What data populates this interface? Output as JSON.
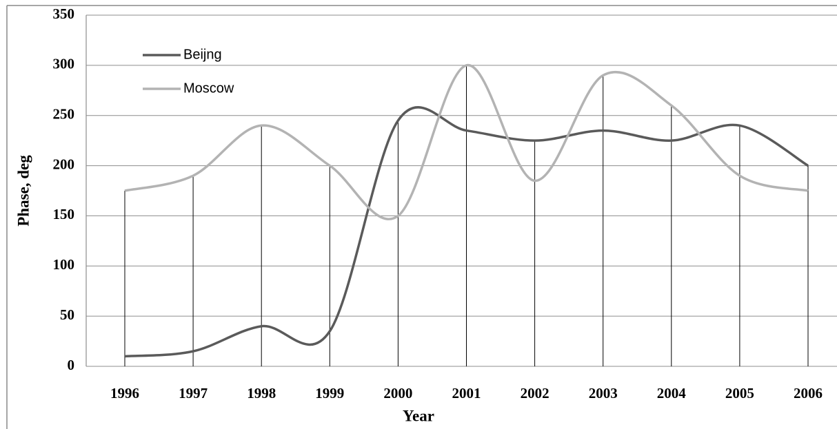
{
  "chart_data": {
    "type": "line",
    "y_label": "Phase, deg",
    "x_label": "Year",
    "categories": [
      "1996",
      "1997",
      "1998",
      "1999",
      "2000",
      "2001",
      "2002",
      "2003",
      "2004",
      "2005",
      "2006"
    ],
    "series": [
      {
        "name": "Beijng",
        "color": "#5a5a5a",
        "values": [
          10,
          15,
          40,
          35,
          245,
          235,
          225,
          235,
          225,
          240,
          200
        ]
      },
      {
        "name": "Moscow",
        "color": "#b3b3b3",
        "values": [
          175,
          190,
          240,
          200,
          150,
          300,
          185,
          290,
          260,
          190,
          175
        ]
      }
    ],
    "ylim": [
      0,
      350
    ],
    "yticks": [
      0,
      50,
      100,
      150,
      200,
      250,
      300,
      350
    ],
    "grid": true,
    "smooth": true,
    "drop_lines": true,
    "legend": "upper left"
  }
}
